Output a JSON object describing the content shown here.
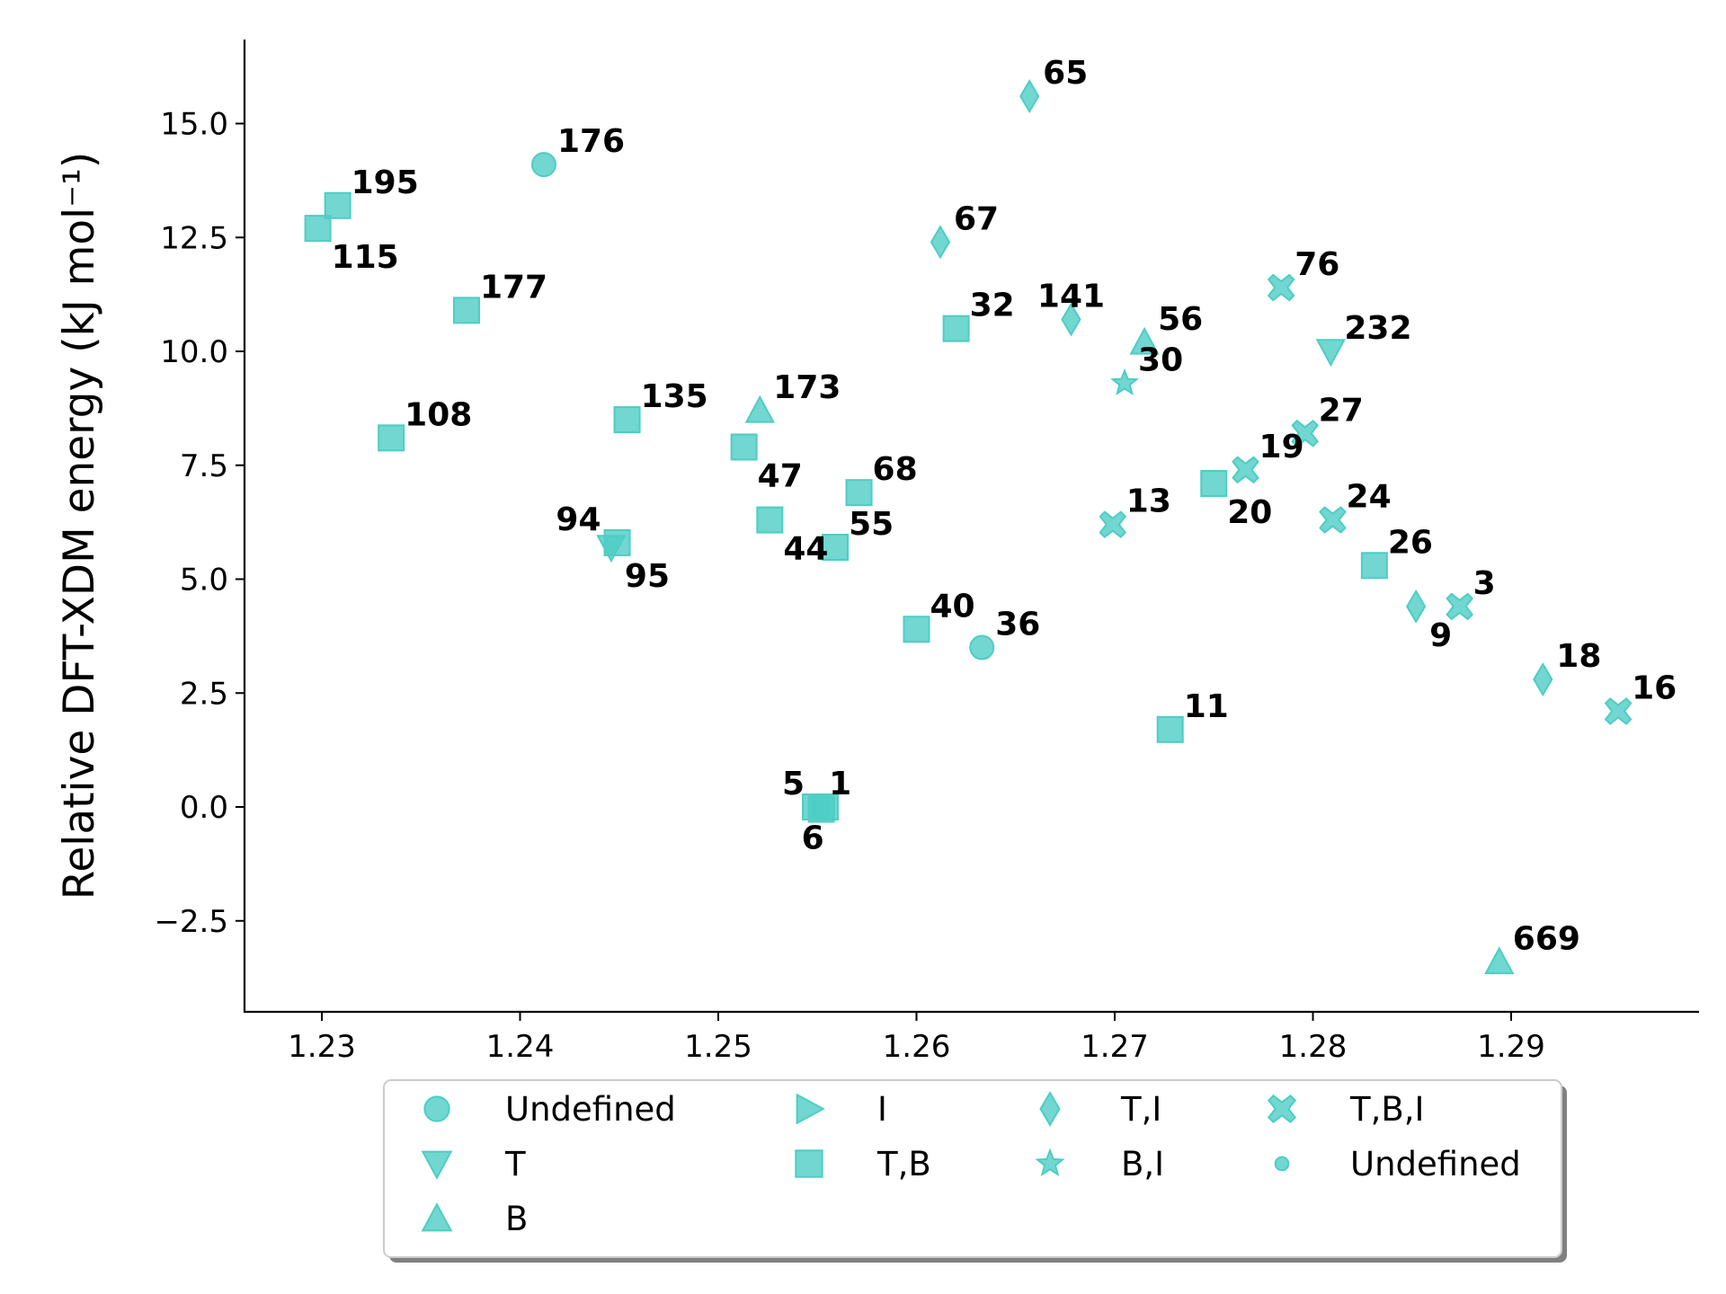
{
  "chart_data": {
    "type": "scatter",
    "ylabel": "Relative DFT-XDM energy (kJ mol⁻¹)",
    "xlabel": "",
    "xlim": [
      1.226,
      1.2988
    ],
    "ylim": [
      -4.5,
      16.9
    ],
    "x_ticks": [
      1.23,
      1.24,
      1.25,
      1.26,
      1.27,
      1.28,
      1.29
    ],
    "x_tick_labels": [
      "1.23",
      "1.24",
      "1.25",
      "1.26",
      "1.27",
      "1.28",
      "1.29"
    ],
    "y_ticks": [
      -2.5,
      0.0,
      2.5,
      5.0,
      7.5,
      10.0,
      12.5,
      15.0
    ],
    "y_tick_labels": [
      "−2.5",
      "0.0",
      "2.5",
      "5.0",
      "7.5",
      "10.0",
      "12.5",
      "15.0"
    ],
    "color": "#4ecdc4",
    "legend": {
      "placement": "below plot",
      "columns": [
        [
          {
            "marker": "circle",
            "label": "Undefined"
          },
          {
            "marker": "triangle-down",
            "label": "T"
          },
          {
            "marker": "triangle-up",
            "label": "B"
          }
        ],
        [
          {
            "marker": "triangle-right",
            "label": "I"
          },
          {
            "marker": "square",
            "label": "T,B"
          }
        ],
        [
          {
            "marker": "diamond",
            "label": "T,I"
          },
          {
            "marker": "star",
            "label": "B,I"
          }
        ],
        [
          {
            "marker": "x-filled",
            "label": "T,B,I"
          },
          {
            "marker": "dot",
            "label": "Undefined"
          }
        ]
      ]
    },
    "points": [
      {
        "label": "176",
        "x": 1.2412,
        "y": 14.1,
        "marker": "circle",
        "lx": 3,
        "ly": -1
      },
      {
        "label": "36",
        "x": 1.2633,
        "y": 3.5,
        "marker": "circle",
        "lx": 3,
        "ly": -1
      },
      {
        "label": "232",
        "x": 1.2809,
        "y": 10.0,
        "marker": "triangle-down",
        "lx": 3,
        "ly": -1
      },
      {
        "label": "95",
        "x": 1.2446,
        "y": 5.7,
        "marker": "triangle-down",
        "lx": 3,
        "ly": 2
      },
      {
        "label": "173",
        "x": 1.2521,
        "y": 8.7,
        "marker": "triangle-up",
        "lx": 3,
        "ly": -1
      },
      {
        "label": "56",
        "x": 1.2715,
        "y": 10.2,
        "marker": "triangle-up",
        "lx": 3,
        "ly": -1
      },
      {
        "label": "669",
        "x": 1.2894,
        "y": -3.4,
        "marker": "triangle-up",
        "lx": 3,
        "ly": -1
      },
      {
        "label": "195",
        "x": 1.2308,
        "y": 13.2,
        "marker": "square",
        "lx": 3,
        "ly": -1
      },
      {
        "label": "115",
        "x": 1.2298,
        "y": 12.7,
        "marker": "square",
        "lx": 3,
        "ly": 2
      },
      {
        "label": "177",
        "x": 1.2373,
        "y": 10.9,
        "marker": "square",
        "lx": 3,
        "ly": -1
      },
      {
        "label": "108",
        "x": 1.2335,
        "y": 8.1,
        "marker": "square",
        "lx": 3,
        "ly": -1
      },
      {
        "label": "135",
        "x": 1.2454,
        "y": 8.5,
        "marker": "square",
        "lx": 3,
        "ly": -1
      },
      {
        "label": "47",
        "x": 1.2513,
        "y": 7.9,
        "marker": "square",
        "lx": 3,
        "ly": 2
      },
      {
        "label": "94",
        "x": 1.2449,
        "y": 5.8,
        "marker": "square",
        "lx": -4,
        "ly": -1
      },
      {
        "label": "44",
        "x": 1.2526,
        "y": 6.3,
        "marker": "square",
        "lx": 3,
        "ly": 2
      },
      {
        "label": "55",
        "x": 1.2559,
        "y": 5.7,
        "marker": "square",
        "lx": 3,
        "ly": -1
      },
      {
        "label": "68",
        "x": 1.2571,
        "y": 6.9,
        "marker": "square",
        "lx": 3,
        "ly": -1
      },
      {
        "label": "40",
        "x": 1.26,
        "y": 3.9,
        "marker": "square",
        "lx": 3,
        "ly": -1
      },
      {
        "label": "32",
        "x": 1.262,
        "y": 10.5,
        "marker": "square",
        "lx": 3,
        "ly": -1
      },
      {
        "label": "20",
        "x": 1.275,
        "y": 7.1,
        "marker": "square",
        "lx": 3,
        "ly": 2
      },
      {
        "label": "11",
        "x": 1.2728,
        "y": 1.7,
        "marker": "square",
        "lx": 3,
        "ly": -1
      },
      {
        "label": "26",
        "x": 1.2831,
        "y": 5.3,
        "marker": "square",
        "lx": 3,
        "ly": -1
      },
      {
        "label": "5",
        "x": 1.2549,
        "y": 0.0,
        "marker": "square",
        "lx": -3,
        "ly": -1
      },
      {
        "label": "1",
        "x": 1.2554,
        "y": 0.0,
        "marker": "square",
        "lx": 2,
        "ly": -1
      },
      {
        "label": "6",
        "x": 1.2552,
        "y": -0.05,
        "marker": "square",
        "lx": -1,
        "ly": 2
      },
      {
        "label": "65",
        "x": 1.2657,
        "y": 15.6,
        "marker": "diamond",
        "lx": 3,
        "ly": -1
      },
      {
        "label": "67",
        "x": 1.2612,
        "y": 12.4,
        "marker": "diamond",
        "lx": 3,
        "ly": -1
      },
      {
        "label": "141",
        "x": 1.2678,
        "y": 10.7,
        "marker": "diamond",
        "lx": 0,
        "ly": -1
      },
      {
        "label": "9",
        "x": 1.2852,
        "y": 4.4,
        "marker": "diamond",
        "lx": 3,
        "ly": 2
      },
      {
        "label": "18",
        "x": 1.2916,
        "y": 2.8,
        "marker": "diamond",
        "lx": 3,
        "ly": -1
      },
      {
        "label": "30",
        "x": 1.2705,
        "y": 9.3,
        "marker": "star",
        "lx": 3,
        "ly": -1
      },
      {
        "label": "76",
        "x": 1.2784,
        "y": 11.4,
        "marker": "x-filled",
        "lx": 3,
        "ly": -1
      },
      {
        "label": "27",
        "x": 1.2796,
        "y": 8.2,
        "marker": "x-filled",
        "lx": 3,
        "ly": -1
      },
      {
        "label": "19",
        "x": 1.2766,
        "y": 7.4,
        "marker": "x-filled",
        "lx": 3,
        "ly": -1
      },
      {
        "label": "13",
        "x": 1.2699,
        "y": 6.2,
        "marker": "x-filled",
        "lx": 3,
        "ly": -1
      },
      {
        "label": "24",
        "x": 1.281,
        "y": 6.3,
        "marker": "x-filled",
        "lx": 3,
        "ly": -1
      },
      {
        "label": "3",
        "x": 1.2874,
        "y": 4.4,
        "marker": "x-filled",
        "lx": 3,
        "ly": -1
      },
      {
        "label": "16",
        "x": 1.2954,
        "y": 2.1,
        "marker": "x-filled",
        "lx": 3,
        "ly": -1
      }
    ]
  }
}
